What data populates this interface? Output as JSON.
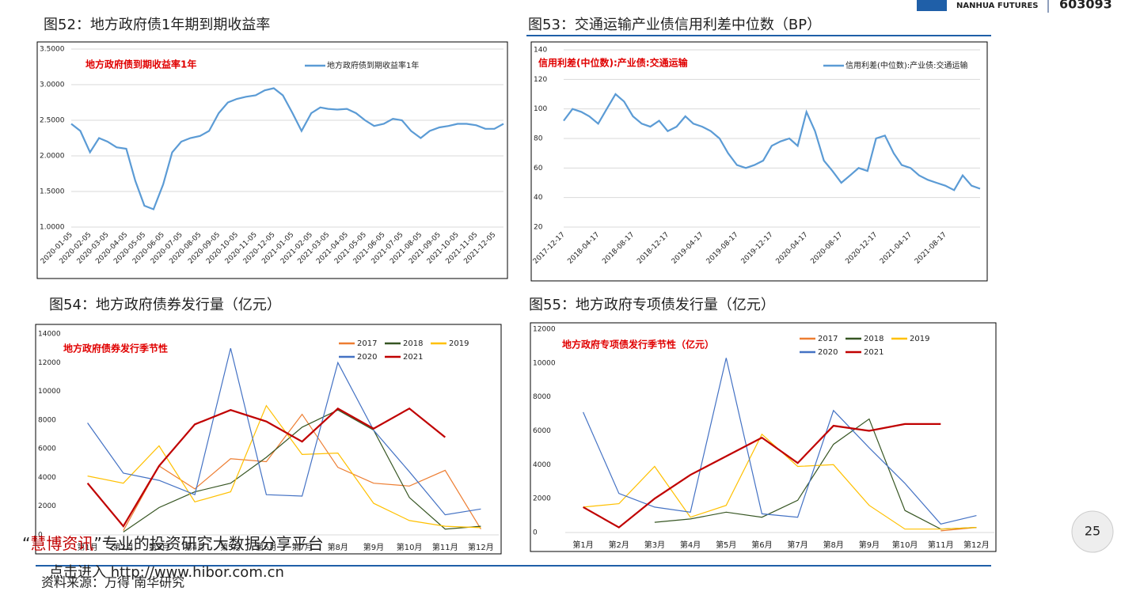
{
  "header": {
    "company": "NANHUA FUTURES",
    "code": "603093"
  },
  "page_number": "25",
  "watermark": {
    "quote_open": "“",
    "brand": "慧博资讯",
    "slogan": "”专业的投资研究大数据分享平台",
    "link": "点击进入 http://www.hibor.com.cn"
  },
  "source": "资料来源：万得 南华研究",
  "chart_data": [
    {
      "type": "line",
      "title": "图52：地方政府债1年期到期收益率",
      "annotation": "地方政府债到期收益率1年",
      "grid": true,
      "x": [
        "2020-01-05",
        "2020-01-20",
        "2020-02-05",
        "2020-02-20",
        "2020-03-05",
        "2020-03-20",
        "2020-04-05",
        "2020-04-20",
        "2020-05-05",
        "2020-05-20",
        "2020-06-05",
        "2020-06-20",
        "2020-07-05",
        "2020-07-20",
        "2020-08-05",
        "2020-08-20",
        "2020-09-05",
        "2020-09-20",
        "2020-10-05",
        "2020-10-20",
        "2020-11-05",
        "2020-11-20",
        "2020-12-05",
        "2020-12-20",
        "2021-01-05",
        "2021-01-20",
        "2021-02-05",
        "2021-02-20",
        "2021-03-05",
        "2021-03-20",
        "2021-04-05",
        "2021-04-20",
        "2021-05-05",
        "2021-05-20",
        "2021-06-05",
        "2021-06-20",
        "2021-07-05",
        "2021-07-20",
        "2021-08-05",
        "2021-08-20",
        "2021-09-05",
        "2021-09-20",
        "2021-10-05",
        "2021-10-20",
        "2021-11-05",
        "2021-11-20",
        "2021-12-05",
        "2021-12-20"
      ],
      "xlim": [
        "2020-01-05",
        "2021-12-20"
      ],
      "xticks": [
        "2020-01-05",
        "2020-02-05",
        "2020-03-05",
        "2020-04-05",
        "2020-05-05",
        "2020-06-05",
        "2020-07-05",
        "2020-08-05",
        "2020-09-05",
        "2020-10-05",
        "2020-11-05",
        "2020-12-05",
        "2021-01-05",
        "2021-02-05",
        "2021-03-05",
        "2021-04-05",
        "2021-05-05",
        "2021-06-05",
        "2021-07-05",
        "2021-08-05",
        "2021-09-05",
        "2021-10-05",
        "2021-11-05",
        "2021-12-05"
      ],
      "ylim": [
        1.0,
        3.5
      ],
      "yticks": [
        {
          "value": 1.0,
          "label": "1.0000"
        },
        {
          "value": 1.5,
          "label": "1.5000"
        },
        {
          "value": 2.0,
          "label": "2.0000"
        },
        {
          "value": 2.5,
          "label": "2.5000"
        },
        {
          "value": 3.0,
          "label": "3.0000"
        },
        {
          "value": 3.5,
          "label": "3.5000"
        }
      ],
      "series": [
        {
          "name": "地方政府债到期收益率1年",
          "color": "#5b9bd5",
          "values": [
            2.45,
            2.35,
            2.05,
            2.25,
            2.2,
            2.12,
            2.1,
            1.65,
            1.3,
            1.25,
            1.6,
            2.05,
            2.2,
            2.25,
            2.28,
            2.35,
            2.6,
            2.75,
            2.8,
            2.83,
            2.85,
            2.92,
            2.95,
            2.85,
            2.6,
            2.35,
            2.6,
            2.68,
            2.66,
            2.65,
            2.66,
            2.6,
            2.5,
            2.42,
            2.45,
            2.52,
            2.5,
            2.35,
            2.25,
            2.35,
            2.4,
            2.42,
            2.45,
            2.45,
            2.43,
            2.38,
            2.38,
            2.45
          ]
        }
      ]
    },
    {
      "type": "line",
      "title": "图53：交通运输产业债信用利差中位数（BP）",
      "annotation": "信用利差(中位数):产业债:交通运输",
      "grid": true,
      "x": [
        "2017-12-17",
        "2018-01-17",
        "2018-02-17",
        "2018-03-17",
        "2018-04-17",
        "2018-05-17",
        "2018-06-17",
        "2018-07-17",
        "2018-08-17",
        "2018-09-17",
        "2018-10-17",
        "2018-11-17",
        "2018-12-17",
        "2019-01-17",
        "2019-02-17",
        "2019-03-17",
        "2019-04-17",
        "2019-05-17",
        "2019-06-17",
        "2019-07-17",
        "2019-08-17",
        "2019-09-17",
        "2019-10-17",
        "2019-11-17",
        "2019-12-17",
        "2020-01-17",
        "2020-02-17",
        "2020-03-17",
        "2020-04-17",
        "2020-05-17",
        "2020-06-17",
        "2020-07-17",
        "2020-08-17",
        "2020-09-17",
        "2020-10-17",
        "2020-11-17",
        "2020-12-17",
        "2021-01-17",
        "2021-02-17",
        "2021-03-17",
        "2021-04-17",
        "2021-05-17",
        "2021-06-17",
        "2021-07-17",
        "2021-08-17",
        "2021-09-17",
        "2021-10-17",
        "2021-11-17",
        "2021-12-17"
      ],
      "xlim": [
        "2017-12-17",
        "2021-12-17"
      ],
      "xticks": [
        "2017-12-17",
        "2018-04-17",
        "2018-08-17",
        "2018-12-17",
        "2019-04-17",
        "2019-08-17",
        "2019-12-17",
        "2020-04-17",
        "2020-08-17",
        "2020-12-17",
        "2021-04-17",
        "2021-08-17"
      ],
      "ylim": [
        20,
        140
      ],
      "yticks": [
        20,
        40,
        60,
        80,
        100,
        120,
        140
      ],
      "series": [
        {
          "name": "信用利差(中位数):产业债:交通运输",
          "color": "#5b9bd5",
          "values": [
            92,
            100,
            98,
            95,
            90,
            100,
            110,
            105,
            95,
            90,
            88,
            92,
            85,
            88,
            95,
            90,
            88,
            85,
            80,
            70,
            62,
            60,
            62,
            65,
            75,
            78,
            80,
            75,
            98,
            85,
            65,
            58,
            50,
            55,
            60,
            58,
            80,
            82,
            70,
            62,
            60,
            55,
            52,
            50,
            48,
            45,
            55,
            48,
            46
          ]
        }
      ]
    },
    {
      "type": "line",
      "title": "图54：地方政府债券发行量（亿元）",
      "annotation": "地方政府债券发行季节性",
      "grid": false,
      "categories": [
        "第1月",
        "第2月",
        "第3月",
        "第4月",
        "第5月",
        "第6月",
        "第7月",
        "第8月",
        "第9月",
        "第10月",
        "第11月",
        "第12月"
      ],
      "ylim": [
        0,
        14000
      ],
      "yticks": [
        0,
        2000,
        4000,
        6000,
        8000,
        10000,
        12000,
        14000
      ],
      "series": [
        {
          "name": "2017",
          "color": "#ed7d31",
          "values": [
            null,
            300,
            4800,
            3200,
            5300,
            5100,
            8400,
            4700,
            3600,
            3400,
            4500,
            400
          ]
        },
        {
          "name": "2018",
          "color": "#375623",
          "values": [
            null,
            200,
            1900,
            3000,
            3600,
            5400,
            7500,
            8700,
            7300,
            2600,
            400,
            600
          ]
        },
        {
          "name": "2019",
          "color": "#ffc000",
          "values": [
            4100,
            3600,
            6200,
            2300,
            3000,
            9000,
            5600,
            5700,
            2200,
            1000,
            600,
            500
          ]
        },
        {
          "name": "2020",
          "color": "#4472c4",
          "values": [
            7800,
            4300,
            3800,
            2800,
            13000,
            2800,
            2700,
            12000,
            7300,
            4400,
            1400,
            1800
          ]
        },
        {
          "name": "2021",
          "color": "#c00000",
          "values": [
            3600,
            600,
            4800,
            7700,
            8700,
            7900,
            6500,
            8800,
            7400,
            8800,
            6800,
            null
          ]
        }
      ]
    },
    {
      "type": "line",
      "title": "图55：地方政府专项债发行量（亿元）",
      "annotation": "地方政府专项债发行季节性（亿元）",
      "grid": false,
      "categories": [
        "第1月",
        "第2月",
        "第3月",
        "第4月",
        "第5月",
        "第6月",
        "第7月",
        "第8月",
        "第9月",
        "第10月",
        "第11月",
        "第12月"
      ],
      "ylim": [
        0,
        12000
      ],
      "yticks": [
        0,
        2000,
        4000,
        6000,
        8000,
        10000,
        12000
      ],
      "series": [
        {
          "name": "2017",
          "color": "#ed7d31",
          "values": [
            null,
            null,
            null,
            null,
            null,
            null,
            null,
            null,
            null,
            null,
            100,
            300
          ]
        },
        {
          "name": "2018",
          "color": "#375623",
          "values": [
            null,
            null,
            600,
            800,
            1200,
            900,
            1900,
            5200,
            6700,
            1300,
            200,
            300
          ]
        },
        {
          "name": "2019",
          "color": "#ffc000",
          "values": [
            1500,
            1700,
            3900,
            900,
            1600,
            5800,
            3900,
            4000,
            1600,
            200,
            200,
            300
          ]
        },
        {
          "name": "2020",
          "color": "#4472c4",
          "values": [
            7100,
            2300,
            1500,
            1200,
            10300,
            1100,
            900,
            7200,
            5000,
            2900,
            500,
            1000
          ]
        },
        {
          "name": "2021",
          "color": "#c00000",
          "values": [
            1500,
            300,
            2000,
            3400,
            4500,
            5600,
            4100,
            6300,
            6000,
            6400,
            6400,
            null
          ]
        }
      ]
    }
  ]
}
